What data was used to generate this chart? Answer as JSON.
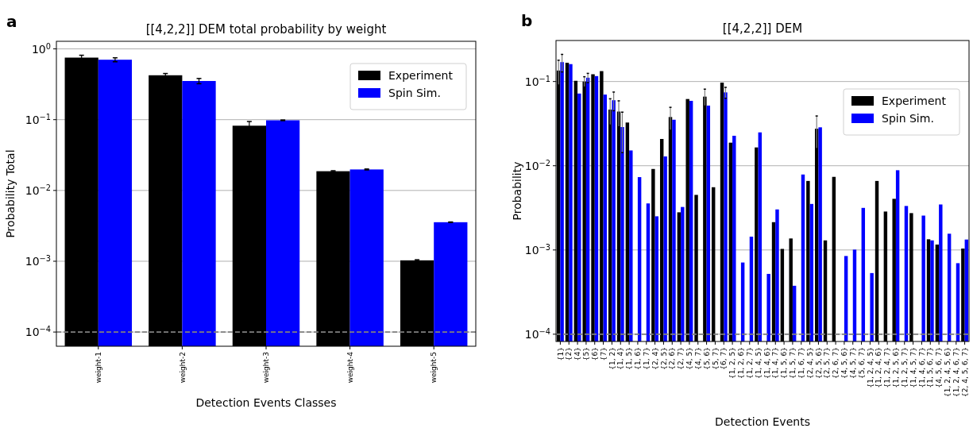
{
  "chart_data": [
    {
      "type": "bar",
      "title": "[[4,2,2]] DEM total probability by weight",
      "xlabel": "Detection Events Classes",
      "ylabel": "Probability Total",
      "annotations": [
        "a"
      ],
      "categories": [
        "weight-1",
        "weight-2",
        "weight-3",
        "weight-4",
        "weight-5"
      ],
      "series": [
        {
          "name": "Experiment",
          "color": "#000000",
          "values": [
            0.753,
            0.424,
            0.0822,
            0.0187,
            0.00103
          ],
          "errors": [
            0.06,
            0.025,
            0.012,
            0.0003,
            2e-05
          ]
        },
        {
          "name": "Spin Sim.",
          "color": "#0000ff",
          "values": [
            0.703,
            0.352,
            0.098,
            0.0198,
            0.00356
          ],
          "errors": [
            0.045,
            0.03,
            0.001,
            0.0003,
            3e-05
          ]
        }
      ],
      "log": "y",
      "ylim": [
        6.3e-05,
        1.28
      ],
      "yticks": [
        {
          "value": 0.0001,
          "label": "10$^{−4}$"
        },
        {
          "value": 0.001,
          "label": "10$^{−3}$"
        },
        {
          "value": 0.01,
          "label": "10$^{−2}$"
        },
        {
          "value": 0.1,
          "label": "10$^{−1}$"
        },
        {
          "value": 1,
          "label": "10$^{0}$"
        }
      ],
      "grid": "y",
      "legend": "top right",
      "ref_lines": [
        {
          "axis": "y",
          "value": 0.0001,
          "color": "#808080",
          "line_style": "dashed"
        }
      ]
    },
    {
      "type": "bar",
      "title": "[[4,2,2]] DEM",
      "xlabel": "Detection Events",
      "ylabel": "Probability",
      "annotations": [
        "b"
      ],
      "categories": [
        "{1}",
        "{2}",
        "{4}",
        "{5}",
        "{6}",
        "{7}",
        "{1, 2}",
        "{1, 4}",
        "{1, 5}",
        "{1, 6}",
        "{1, 7}",
        "{2, 4}",
        "{2, 5}",
        "{2, 6}",
        "{2, 7}",
        "{4, 5}",
        "{4, 7}",
        "{5, 6}",
        "{5, 7}",
        "{6, 7}",
        "{1, 2, 5}",
        "{1, 2, 6}",
        "{1, 2, 7}",
        "{1, 4, 5}",
        "{1, 4, 6}",
        "{1, 4, 7}",
        "{1, 5, 6}",
        "{1, 5, 7}",
        "{1, 6, 7}",
        "{2, 4, 5}",
        "{2, 5, 6}",
        "{2, 5, 7}",
        "{2, 6, 7}",
        "{4, 5, 6}",
        "{4, 5, 7}",
        "{5, 6, 7}",
        "{1, 2, 4, 5}",
        "{1, 2, 4, 6}",
        "{1, 2, 4, 7}",
        "{1, 2, 5, 6}",
        "{1, 2, 5, 7}",
        "{1, 4, 5, 7}",
        "{1, 4, 6, 7}",
        "{1, 5, 6, 7}",
        "{4, 5, 6, 7}",
        "{1, 2, 4, 5, 6}",
        "{1, 2, 4, 6, 7}",
        "{2, 4, 5, 6, 7}"
      ],
      "series": [
        {
          "name": "Experiment",
          "color": "#000000",
          "values": [
            0.135,
            0.167,
            0.102,
            0.1,
            0.122,
            0.133,
            0.0464,
            0.044,
            0.0326,
            null,
            null,
            0.00916,
            0.0208,
            0.0379,
            0.0028,
            0.062,
            0.00451,
            0.0662,
            0.00556,
            0.097,
            0.0188,
            null,
            null,
            0.0165,
            null,
            0.00214,
            0.00103,
            0.00137,
            null,
            0.0066,
            0.0275,
            0.0013,
            0.00738,
            null,
            null,
            null,
            null,
            0.0066,
            0.00286,
            0.00405,
            null,
            0.00274,
            null,
            0.00134,
            0.00116,
            null,
            null,
            0.00104
          ],
          "errors": [
            0.044,
            null,
            null,
            0.014,
            null,
            null,
            0.016,
            0.015,
            null,
            null,
            null,
            null,
            null,
            0.0115,
            null,
            null,
            null,
            0.015,
            null,
            null,
            null,
            null,
            null,
            null,
            null,
            null,
            null,
            null,
            null,
            null,
            0.0115,
            null,
            null,
            null,
            null,
            null,
            null,
            null,
            null,
            null,
            null,
            null,
            null,
            null,
            null,
            null,
            null,
            null
          ]
        },
        {
          "name": "Spin Sim.",
          "color": "#0000ff",
          "values": [
            0.17,
            0.161,
            0.072,
            0.111,
            0.116,
            0.07,
            0.06,
            0.0288,
            0.0152,
            0.00733,
            0.00357,
            0.00251,
            0.0129,
            0.0352,
            0.00324,
            0.059,
            null,
            0.0518,
            null,
            0.0743,
            0.0227,
            0.00071,
            0.00144,
            0.0249,
            0.00052,
            0.00303,
            null,
            0.000376,
            0.00787,
            0.00352,
            0.0286,
            null,
            null,
            0.000848,
            0.00101,
            0.00316,
            0.000532,
            null,
            null,
            0.00885,
            0.00333,
            null,
            0.00256,
            0.0013,
            0.00347,
            0.00156,
            0.000697,
            0.00133
          ],
          "errors": [
            0.04,
            null,
            null,
            0.014,
            null,
            null,
            0.015,
            0.0145,
            null,
            null,
            null,
            null,
            null,
            null,
            null,
            null,
            null,
            null,
            null,
            0.011,
            null,
            null,
            null,
            null,
            null,
            null,
            null,
            null,
            null,
            null,
            null,
            null,
            null,
            null,
            null,
            null,
            null,
            null,
            null,
            null,
            null,
            null,
            null,
            null,
            null,
            null,
            null,
            null
          ]
        }
      ],
      "log": "y",
      "ylim": [
        8.2e-05,
        0.307
      ],
      "yticks": [
        {
          "value": 0.0001,
          "label": "10$^{−4}$"
        },
        {
          "value": 0.001,
          "label": "10$^{−3}$"
        },
        {
          "value": 0.01,
          "label": "10$^{−2}$"
        },
        {
          "value": 0.1,
          "label": "10$^{−1}$"
        }
      ],
      "grid": "y",
      "legend": "top right",
      "ref_lines": [
        {
          "axis": "y",
          "value": 0.0001,
          "color": "#808080",
          "line_style": "dashed"
        }
      ]
    }
  ]
}
